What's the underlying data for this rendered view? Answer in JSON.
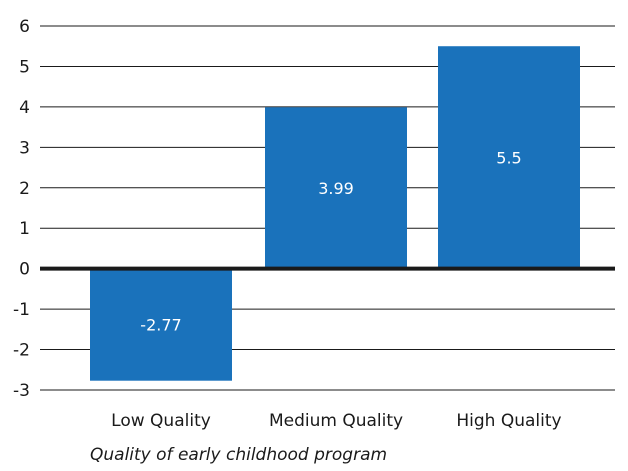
{
  "chart_data": {
    "type": "bar",
    "categories": [
      "Low Quality",
      "Medium Quality",
      "High Quality"
    ],
    "values": [
      -2.77,
      3.99,
      5.5
    ],
    "data_labels": [
      "-2.77",
      "3.99",
      "5.5"
    ],
    "title": "",
    "xlabel": "Quality of early childhood program",
    "ylabel": "",
    "ylim": [
      -3,
      6
    ],
    "yticks": [
      -3,
      -2,
      -1,
      0,
      1,
      2,
      3,
      4,
      5,
      6
    ],
    "grid": true,
    "colors": {
      "bar": "#1a72bb",
      "grid": "#1a1a1a",
      "zero_line": "#1a1a1a"
    }
  }
}
